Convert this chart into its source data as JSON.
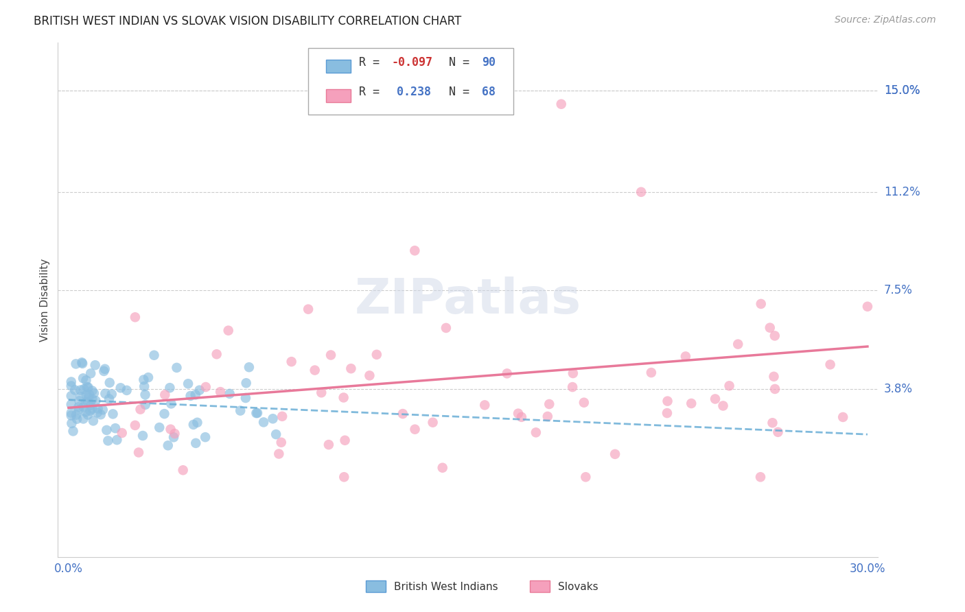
{
  "title": "BRITISH WEST INDIAN VS SLOVAK VISION DISABILITY CORRELATION CHART",
  "source": "Source: ZipAtlas.com",
  "ylabel": "Vision Disability",
  "blue_color": "#89bde0",
  "pink_color": "#f5a0bc",
  "blue_line_color": "#6aaed6",
  "pink_line_color": "#e8799a",
  "grid_color": "#cccccc",
  "background_color": "#ffffff",
  "title_fontsize": 12,
  "source_fontsize": 10,
  "tick_label_color": "#4472c4",
  "tick_label_fontsize": 12,
  "ylabel_fontsize": 11,
  "watermark_text": "ZIPatlas",
  "ytick_labels": [
    "15.0%",
    "11.2%",
    "7.5%",
    "3.8%"
  ],
  "ytick_values": [
    0.15,
    0.112,
    0.075,
    0.038
  ],
  "xlim": [
    0.0,
    0.3
  ],
  "ylim": [
    -0.025,
    0.168
  ],
  "legend_R_blue": "-0.097",
  "legend_N_blue": "90",
  "legend_R_pink": "0.238",
  "legend_N_pink": "68",
  "blue_trend_y0": 0.034,
  "blue_trend_y1": 0.021,
  "pink_trend_y0": 0.031,
  "pink_trend_y1": 0.054
}
